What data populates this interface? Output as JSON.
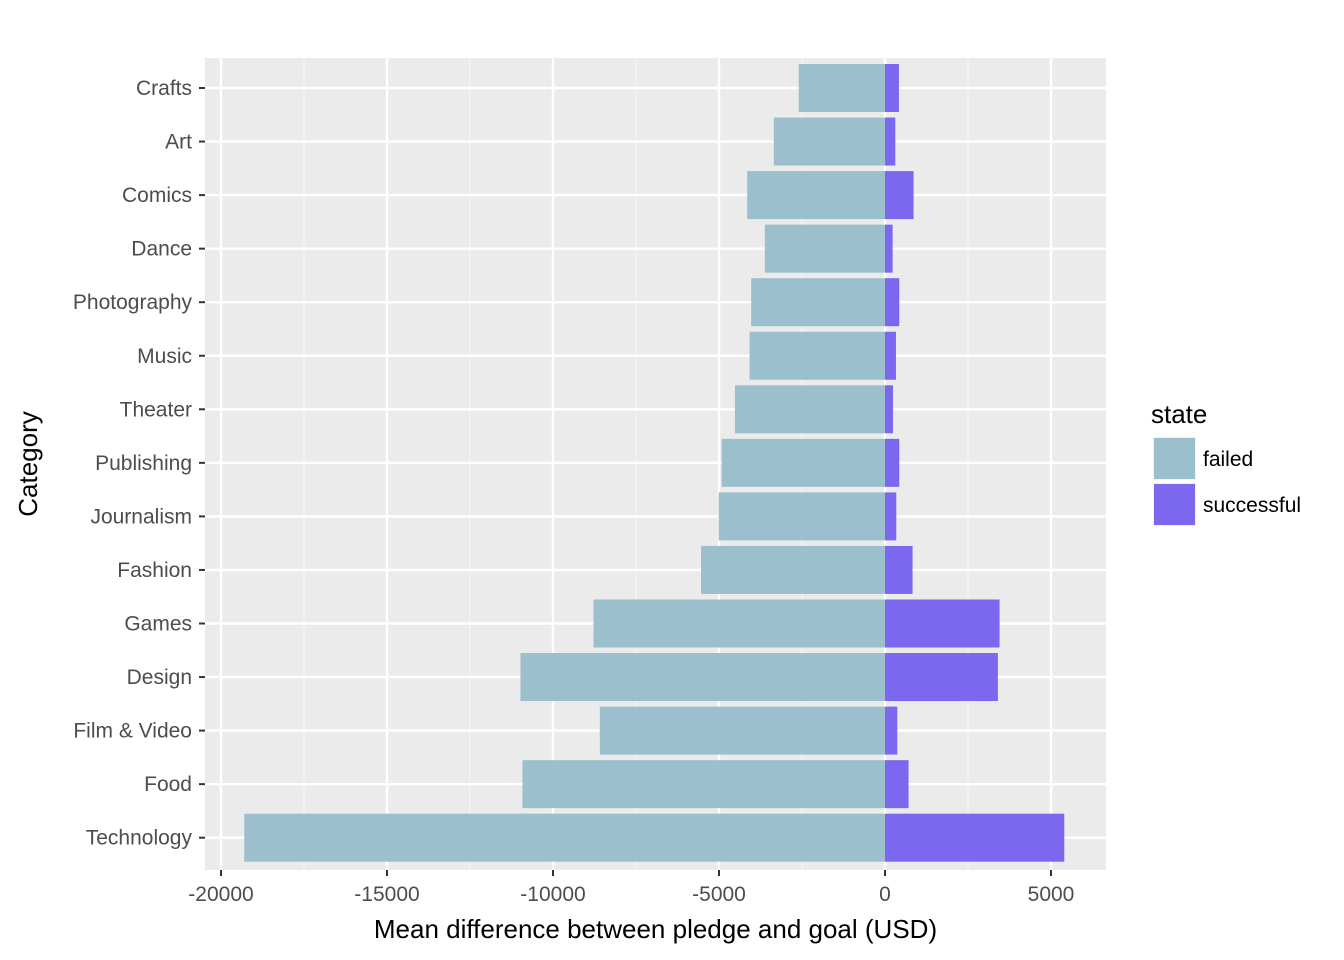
{
  "chart_data": {
    "type": "bar",
    "orientation": "horizontal",
    "stacked": true,
    "xlabel": "Mean difference between pledge and goal (USD)",
    "ylabel": "Category",
    "xlim": [
      -20000,
      6000
    ],
    "x_ticks": [
      -20000,
      -15000,
      -10000,
      -5000,
      0,
      5000
    ],
    "x_tick_labels": [
      "-20000",
      "-15000",
      "-10000",
      "-5000",
      "0",
      "5000"
    ],
    "categories": [
      "Crafts",
      "Art",
      "Comics",
      "Dance",
      "Photography",
      "Music",
      "Theater",
      "Publishing",
      "Journalism",
      "Fashion",
      "Games",
      "Design",
      "Film & Video",
      "Food",
      "Technology"
    ],
    "series": [
      {
        "name": "failed",
        "color": "#9bbfcc",
        "values": [
          -2600,
          -3350,
          -4150,
          -3620,
          -4030,
          -4080,
          -4520,
          -4920,
          -5010,
          -5540,
          -8780,
          -10980,
          -8590,
          -10920,
          -19300
        ]
      },
      {
        "name": "successful",
        "color": "#7b68ee",
        "values": [
          420,
          310,
          860,
          230,
          430,
          330,
          240,
          430,
          340,
          830,
          3450,
          3400,
          370,
          710,
          5400
        ]
      }
    ],
    "grid": true,
    "background": "#ebebeb",
    "legend": {
      "title": "state",
      "position": "right"
    }
  }
}
